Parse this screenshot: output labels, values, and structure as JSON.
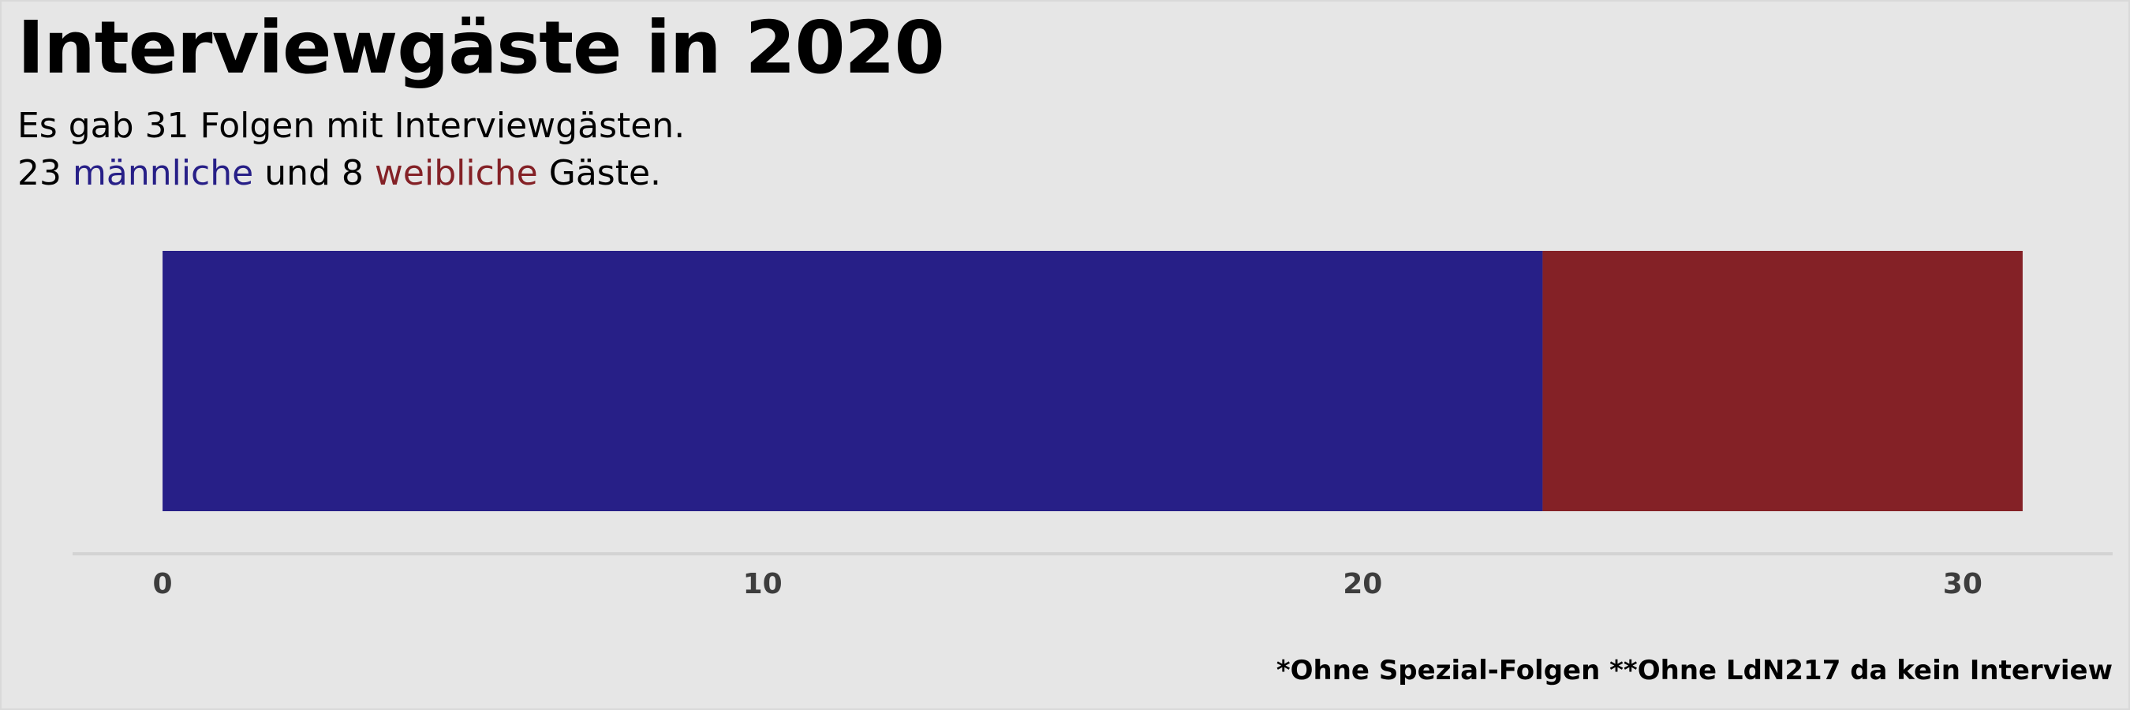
{
  "title": "Interviewgäste in 2020",
  "subtitle": {
    "line1": "Es gab 31 Folgen mit Interviewgästen.",
    "line2_count_male": "23",
    "line2_word_male": "männliche",
    "line2_and": "und",
    "line2_count_female": "8",
    "line2_word_female": "weibliche",
    "line2_end": "Gäste."
  },
  "caption": "*Ohne Spezial-Folgen **Ohne LdN217 da kein Interview",
  "colors": {
    "background": "#e6e6e6",
    "male": "#271f87",
    "female": "#842126",
    "axis_line": "#d3d3d3",
    "tick_text": "#3d3d3d"
  },
  "chart_data": {
    "type": "bar",
    "orientation": "horizontal",
    "stacked": true,
    "categories": [
      ""
    ],
    "series": [
      {
        "name": "männliche",
        "values": [
          23
        ],
        "color": "#271f87"
      },
      {
        "name": "weibliche",
        "values": [
          8
        ],
        "color": "#842126"
      }
    ],
    "xlim": [
      -1.5,
      32.5
    ],
    "xticks": [
      0,
      10,
      20,
      30
    ],
    "tick_labels": [
      "0",
      "10",
      "20",
      "30"
    ],
    "grid": false,
    "legend": "none"
  }
}
